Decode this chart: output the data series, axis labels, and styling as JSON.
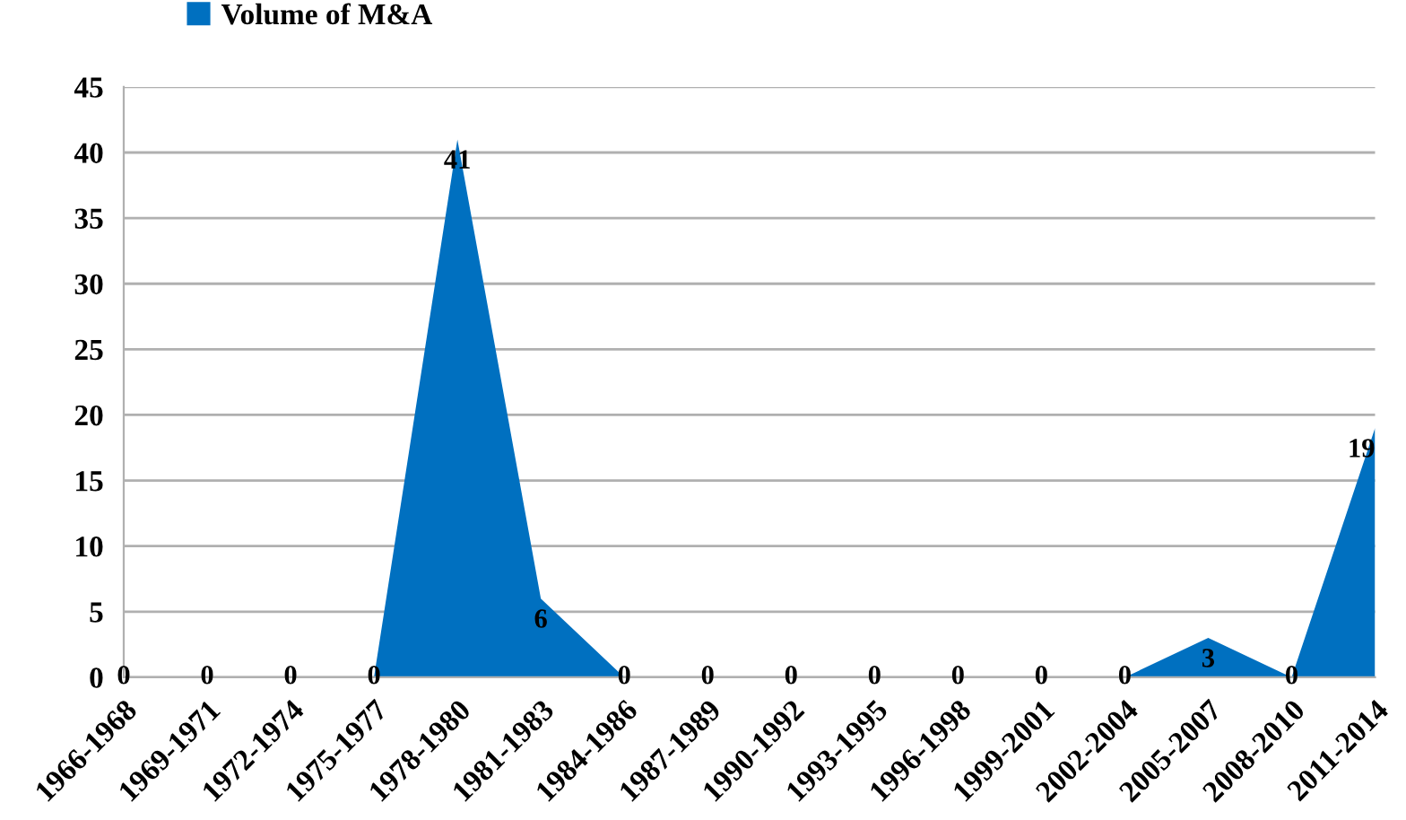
{
  "chart_data": {
    "type": "area",
    "categories": [
      "1966-1968",
      "1969-1971",
      "1972-1974",
      "1975-1977",
      "1978-1980",
      "1981-1983",
      "1984-1986",
      "1987-1989",
      "1990-1992",
      "1993-1995",
      "1996-1998",
      "1999-2001",
      "2002-2004",
      "2005-2007",
      "2008-2010",
      "2011-2014"
    ],
    "series": [
      {
        "name": "Volume of M&A",
        "color": "#0070c0",
        "values": [
          0,
          0,
          0,
          0,
          41,
          6,
          0,
          0,
          0,
          0,
          0,
          0,
          0,
          3,
          0,
          19
        ]
      }
    ],
    "ylim": [
      0,
      45
    ],
    "yticks": [
      0,
      5,
      10,
      15,
      20,
      25,
      30,
      35,
      40,
      45
    ],
    "grid": "y",
    "legend": "top left",
    "data_labels": true
  }
}
